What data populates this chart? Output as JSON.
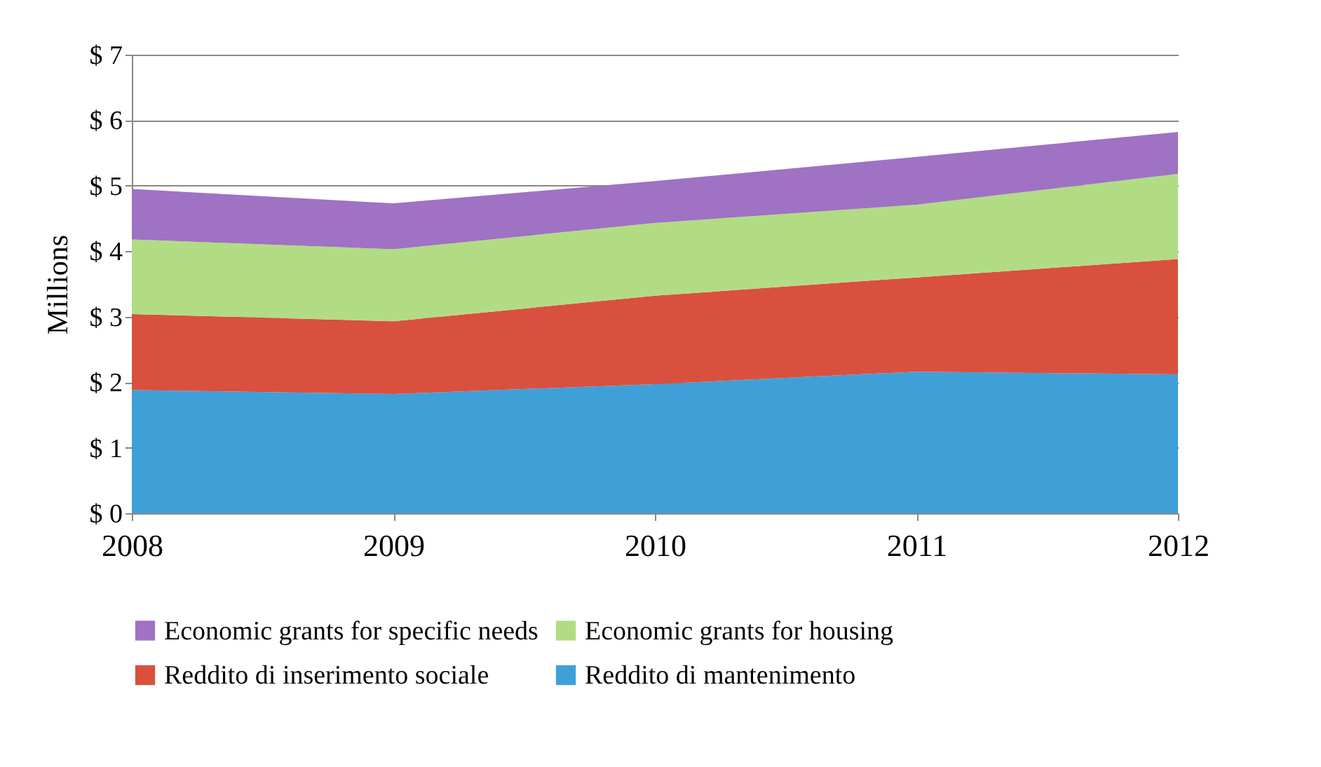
{
  "chart_data": {
    "type": "area",
    "stacked": true,
    "ylabel": "Millions",
    "x": [
      2008,
      2009,
      2010,
      2011,
      2012
    ],
    "xlim": [
      2008,
      2012
    ],
    "xticks": [
      2008,
      2009,
      2010,
      2011,
      2012
    ],
    "ylim": [
      0,
      7
    ],
    "yticks": [
      {
        "value": 0,
        "label": "$ 0"
      },
      {
        "value": 1,
        "label": "$ 1"
      },
      {
        "value": 2,
        "label": "$ 2"
      },
      {
        "value": 3,
        "label": "$ 3"
      },
      {
        "value": 4,
        "label": "$ 4"
      },
      {
        "value": 5,
        "label": "$ 5"
      },
      {
        "value": 6,
        "label": "$ 6"
      },
      {
        "value": 7,
        "label": "$ 7"
      }
    ],
    "grid": "y",
    "legend": "bottom",
    "series": [
      {
        "name": "Reddito di mantenimento",
        "color": "#3fa0d8",
        "values": [
          1.88,
          1.82,
          1.97,
          2.16,
          2.12
        ]
      },
      {
        "name": "Reddito di inserimento sociale",
        "color": "#d9503f",
        "values": [
          1.16,
          1.11,
          1.35,
          1.44,
          1.76
        ]
      },
      {
        "name": "Economic grants for housing",
        "color": "#b2dc84",
        "values": [
          1.14,
          1.1,
          1.11,
          1.11,
          1.3
        ]
      },
      {
        "name": "Economic grants for specific needs",
        "color": "#9f72c4",
        "values": [
          0.77,
          0.7,
          0.64,
          0.73,
          0.64
        ]
      }
    ]
  }
}
